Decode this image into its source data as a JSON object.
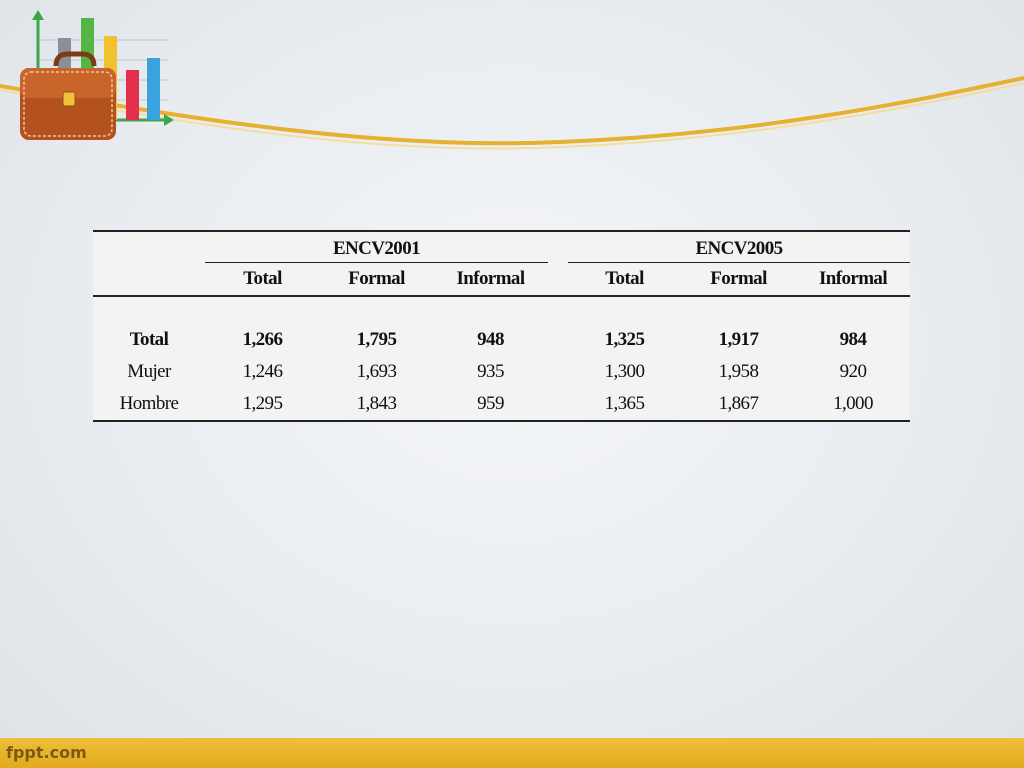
{
  "table": {
    "groups": [
      "ENCV2001",
      "ENCV2005"
    ],
    "subheaders": [
      "Total",
      "Formal",
      "Informal",
      "Total",
      "Formal",
      "Informal"
    ],
    "rows": [
      {
        "label": "Total",
        "cells": [
          "1,266",
          "1,795",
          "948",
          "1,325",
          "1,917",
          "984"
        ]
      },
      {
        "label": "Mujer",
        "cells": [
          "1,246",
          "1,693",
          "935",
          "1,300",
          "1,958",
          "920"
        ]
      },
      {
        "label": "Hombre",
        "cells": [
          "1,295",
          "1,843",
          "959",
          "1,365",
          "1,867",
          "1,000"
        ]
      }
    ]
  },
  "footer": {
    "brand": "fppt.com"
  },
  "colors": {
    "accent_gold": "#e8b12a",
    "background": "#e9edf0"
  },
  "icons": [
    "briefcase-icon",
    "bar-chart-icon"
  ]
}
